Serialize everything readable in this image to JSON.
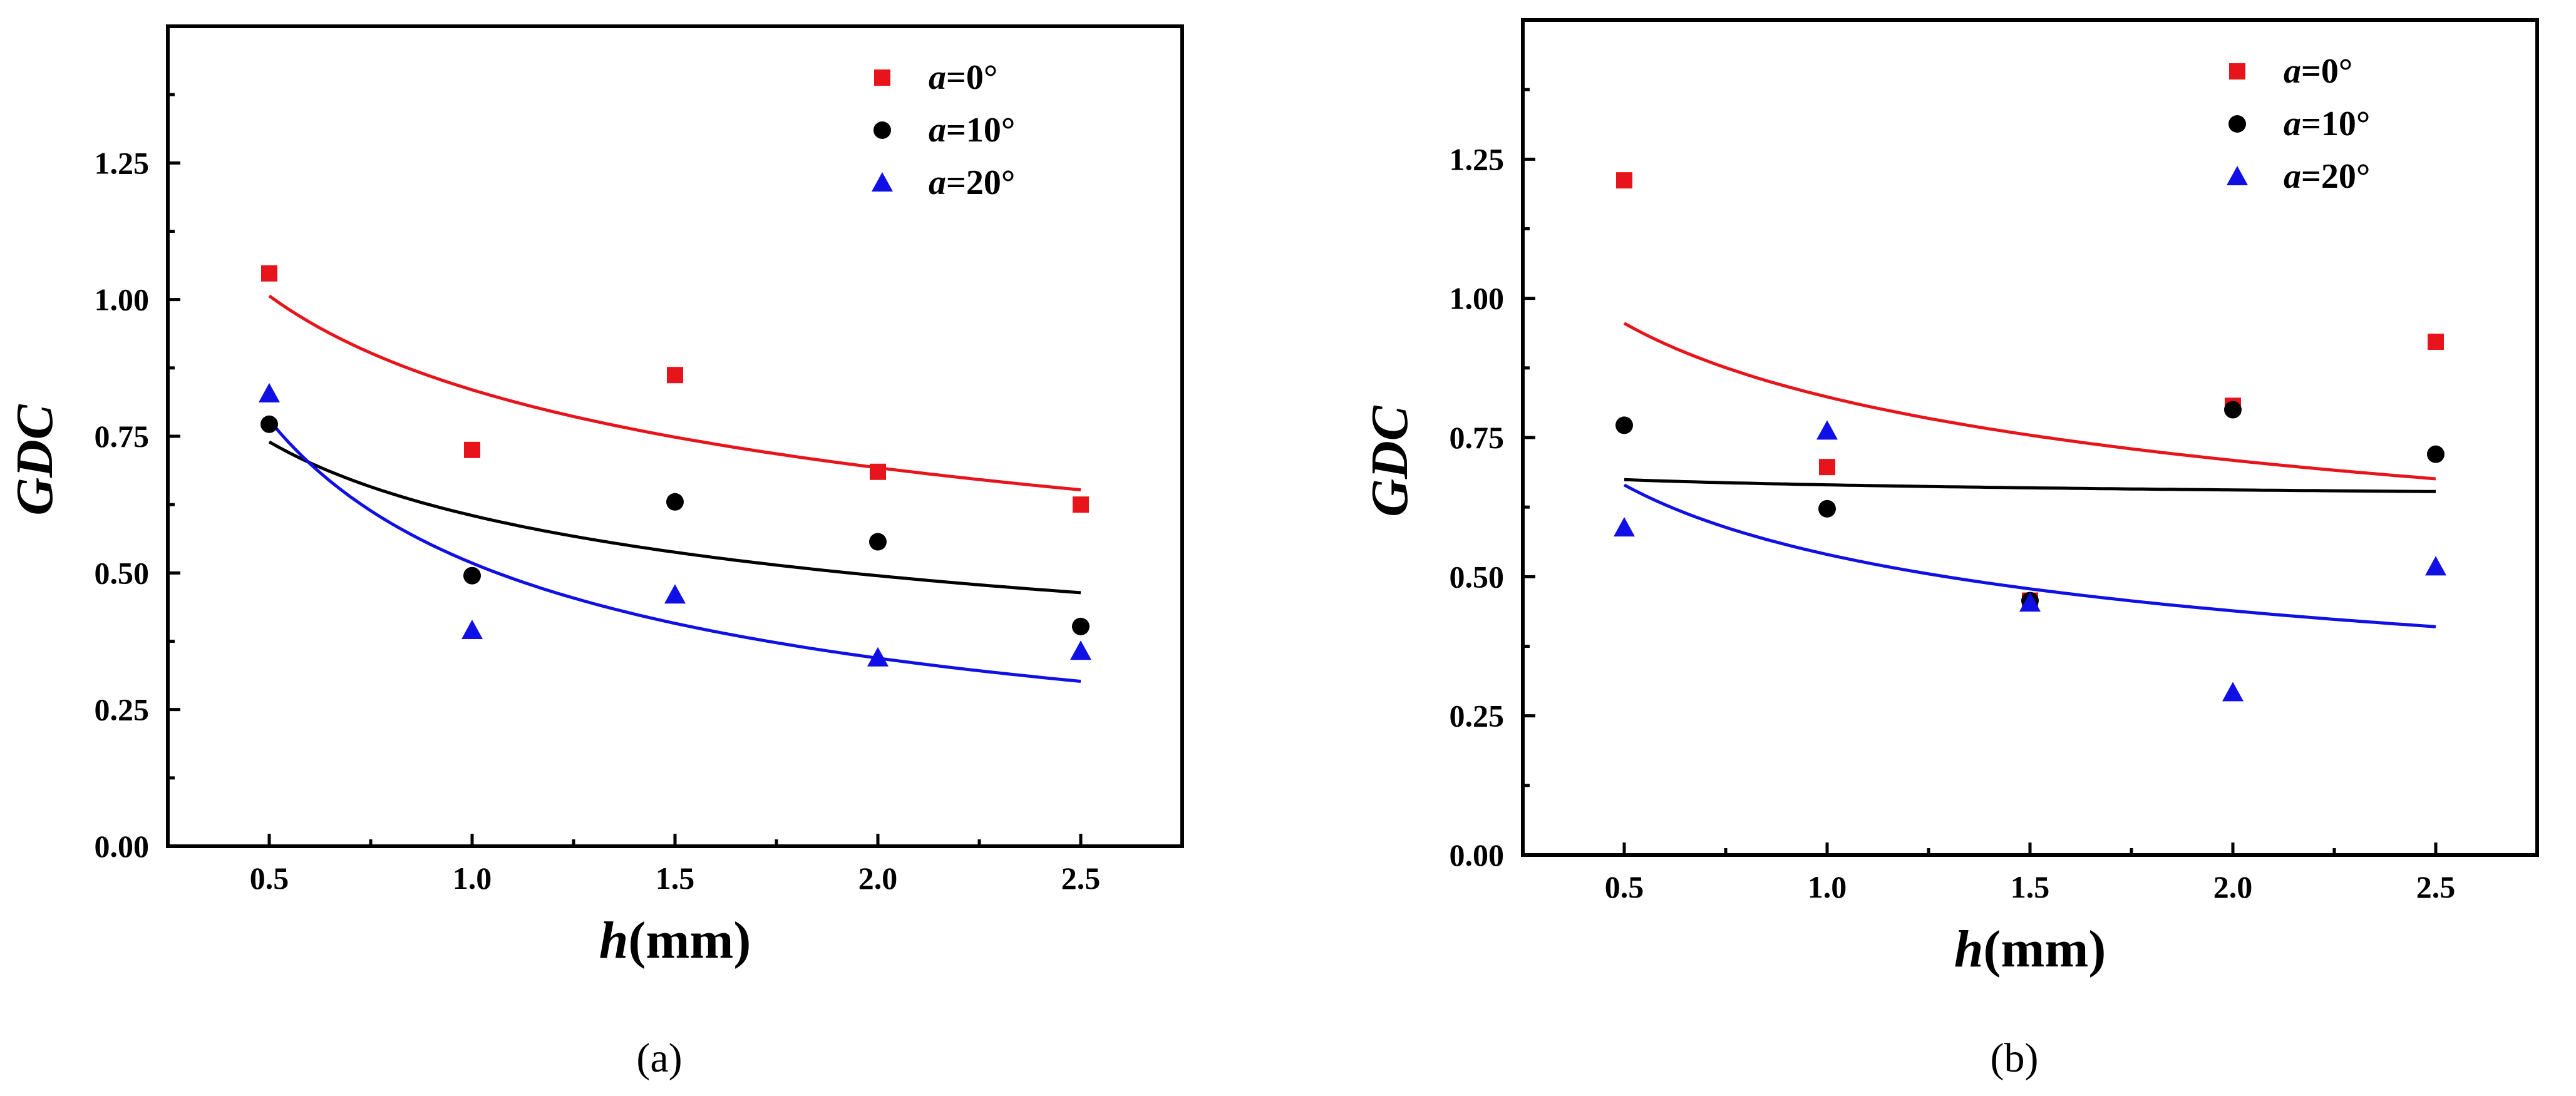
{
  "chart_data": [
    {
      "type": "scatter",
      "panel_label": "(a)",
      "xlabel": {
        "var": "h",
        "unit": "(mm)"
      },
      "ylabel": "GDC",
      "xlim": [
        0.25,
        2.75
      ],
      "ylim": [
        0.0,
        1.5
      ],
      "x_ticks": [
        "0.5",
        "1.0",
        "1.5",
        "2.0",
        "2.5"
      ],
      "y_ticks": [
        "0.00",
        "0.25",
        "0.50",
        "0.75",
        "1.00",
        "1.25"
      ],
      "legend_position": "top-right",
      "series": [
        {
          "name": "a=0°",
          "label_var": "a",
          "label_val": "=0°",
          "marker": "square",
          "color": "#e8141c",
          "x": [
            0.5,
            1.0,
            1.5,
            2.0,
            2.5
          ],
          "y": [
            1.048,
            0.725,
            0.862,
            0.685,
            0.625
          ],
          "fit": {
            "a": 0.835,
            "b": -0.27
          }
        },
        {
          "name": "a=10°",
          "label_var": "a",
          "label_val": "=10°",
          "marker": "circle",
          "color": "#000000",
          "x": [
            0.5,
            1.0,
            1.5,
            2.0,
            2.5
          ],
          "y": [
            0.772,
            0.495,
            0.63,
            0.557,
            0.402
          ],
          "fit": {
            "a": 0.605,
            "b": -0.29
          }
        },
        {
          "name": "a=20°",
          "label_var": "a",
          "label_val": "=20°",
          "marker": "triangle",
          "color": "#1010e6",
          "x": [
            0.5,
            1.0,
            1.5,
            2.0,
            2.5
          ],
          "y": [
            0.828,
            0.395,
            0.46,
            0.345,
            0.357
          ],
          "fit": {
            "a": 0.518,
            "b": -0.59
          }
        }
      ]
    },
    {
      "type": "scatter",
      "panel_label": "(b)",
      "xlabel": {
        "var": "h",
        "unit": "(mm)"
      },
      "ylabel": "GDC",
      "xlim": [
        0.25,
        2.75
      ],
      "ylim": [
        0.0,
        1.5
      ],
      "x_ticks": [
        "0.5",
        "1.0",
        "1.5",
        "2.0",
        "2.5"
      ],
      "y_ticks": [
        "0.00",
        "0.25",
        "0.50",
        "0.75",
        "1.00",
        "1.25"
      ],
      "legend_position": "top-right",
      "series": [
        {
          "name": "a=0°",
          "label_var": "a",
          "label_val": "=0°",
          "marker": "square",
          "color": "#e8141c",
          "x": [
            0.5,
            1.0,
            1.5,
            2.0,
            2.5
          ],
          "y": [
            1.212,
            0.697,
            0.457,
            0.807,
            0.922
          ],
          "fit": {
            "a": 0.823,
            "b": -0.215
          }
        },
        {
          "name": "a=10°",
          "label_var": "a",
          "label_val": "=10°",
          "marker": "circle",
          "color": "#000000",
          "x": [
            0.5,
            1.0,
            1.5,
            2.0,
            2.5
          ],
          "y": [
            0.772,
            0.622,
            0.457,
            0.8,
            0.72
          ],
          "fit": {
            "a": 0.665,
            "b": -0.02
          }
        },
        {
          "name": "a=20°",
          "label_var": "a",
          "label_val": "=20°",
          "marker": "triangle",
          "color": "#1010e6",
          "x": [
            0.5,
            1.0,
            1.5,
            2.0,
            2.5
          ],
          "y": [
            0.588,
            0.762,
            0.453,
            0.292,
            0.518
          ],
          "fit": {
            "a": 0.54,
            "b": -0.3
          }
        }
      ]
    }
  ]
}
